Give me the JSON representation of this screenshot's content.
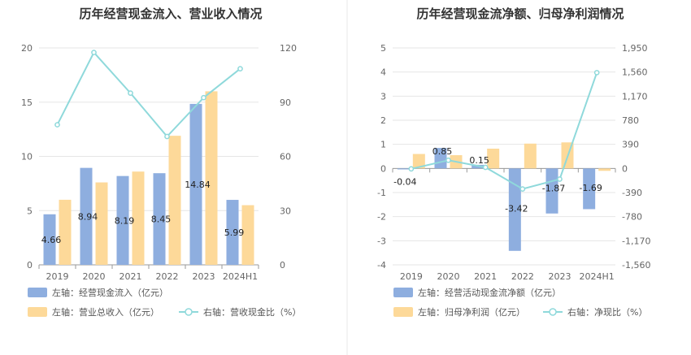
{
  "colors": {
    "bar_blue": "#8eaedf",
    "bar_yellow": "#fdd999",
    "line": "#8fd9db",
    "grid": "#e6e6e6",
    "axis": "#999999",
    "divider": "#e8e8e8"
  },
  "chart_data": [
    {
      "type": "bar",
      "title": "历年经营现金流入、营业收入情况",
      "categories": [
        "2019",
        "2020",
        "2021",
        "2022",
        "2023",
        "2024H1"
      ],
      "left_axis": {
        "ticks": [
          "0",
          "5",
          "10",
          "15",
          "20"
        ],
        "range": [
          0,
          20
        ]
      },
      "right_axis": {
        "ticks": [
          "0",
          "30",
          "60",
          "90",
          "120"
        ],
        "range": [
          0,
          120
        ]
      },
      "series": [
        {
          "name": "左轴：经营现金流入（亿元）",
          "axis": "left",
          "kind": "bar",
          "color": "#8eaedf",
          "values": [
            4.66,
            8.94,
            8.19,
            8.45,
            14.84,
            5.99
          ],
          "labels": [
            "4.66",
            "8.94",
            "8.19",
            "8.45",
            "14.84",
            "5.99"
          ]
        },
        {
          "name": "左轴：营业总收入（亿元）",
          "axis": "left",
          "kind": "bar",
          "color": "#fdd999",
          "values": [
            6.0,
            7.6,
            8.6,
            11.9,
            16.0,
            5.5
          ]
        },
        {
          "name": "右轴：营收现金比（%）",
          "axis": "right",
          "kind": "line",
          "color": "#8fd9db",
          "values": [
            77.5,
            117.5,
            95.0,
            71.0,
            92.5,
            108.5
          ]
        }
      ]
    },
    {
      "type": "bar",
      "title": "历年经营现金流净额、归母净利润情况",
      "categories": [
        "2019",
        "2020",
        "2021",
        "2022",
        "2023",
        "2024H1"
      ],
      "left_axis": {
        "ticks": [
          "-4",
          "-3",
          "-2",
          "-1",
          "0",
          "1",
          "2",
          "3",
          "4",
          "5"
        ],
        "range": [
          -4,
          5
        ]
      },
      "right_axis": {
        "ticks": [
          "-1,560",
          "-1,170",
          "-780",
          "-390",
          "0",
          "390",
          "780",
          "1,170",
          "1,560",
          "1,950"
        ],
        "range": [
          -1560,
          1950
        ]
      },
      "series": [
        {
          "name": "左轴：经营活动现金流净额（亿元）",
          "axis": "left",
          "kind": "bar",
          "color": "#8eaedf",
          "values": [
            -0.04,
            0.85,
            0.15,
            -3.42,
            -1.87,
            -1.69
          ],
          "labels": [
            "-0.04",
            "0.85",
            "0.15",
            "-3.42",
            "-1.87",
            "-1.69"
          ]
        },
        {
          "name": "左轴：归母净利润（亿元）",
          "axis": "left",
          "kind": "bar",
          "color": "#fdd999",
          "values": [
            0.6,
            0.55,
            0.82,
            1.03,
            1.08,
            -0.1
          ]
        },
        {
          "name": "右轴：净现比（%）",
          "axis": "right",
          "kind": "line",
          "color": "#8fd9db",
          "values": [
            -7,
            133,
            18,
            -332,
            -173,
            1550
          ]
        }
      ]
    }
  ]
}
